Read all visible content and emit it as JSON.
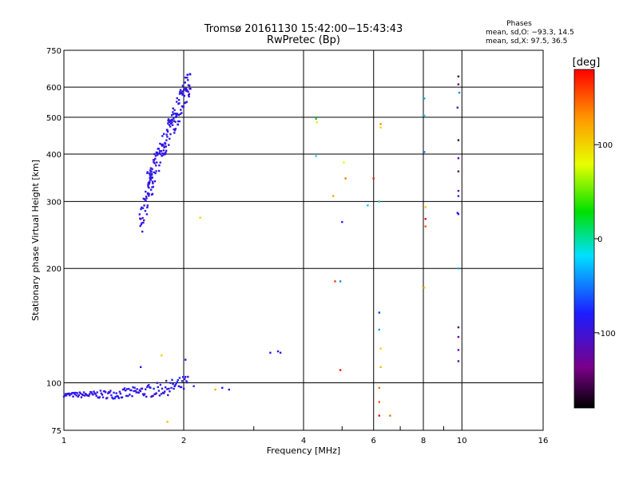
{
  "chart_data": {
    "type": "scatter",
    "title": "Tromsø 20161130 15:42:00−15:43:43",
    "subtitle": "RwPretec (Bp)",
    "xlabel": "Frequency [MHz]",
    "ylabel": "Stationary phase Virtual Height [km]",
    "x_scale": "log",
    "y_scale": "log",
    "xlim": [
      1,
      16
    ],
    "ylim": [
      75,
      750
    ],
    "x_ticks": [
      1,
      2,
      4,
      6,
      8,
      10,
      16
    ],
    "x_tick_labels": [
      "1",
      "2",
      "4",
      "6",
      "8",
      "10",
      "16"
    ],
    "y_ticks": [
      75,
      100,
      200,
      300,
      400,
      500,
      600,
      750
    ],
    "y_tick_labels": [
      "75",
      "100",
      "200",
      "300",
      "400",
      "500",
      "600",
      "750"
    ],
    "grid": true,
    "phases_box": {
      "heading": "Phases",
      "line_o": "mean, sd,O:  −93.3,  14.5",
      "line_x": "mean, sd,X:   97.5,  36.5"
    },
    "colorbar": {
      "label": "[deg]",
      "range": [
        -180,
        180
      ],
      "ticks": [
        100,
        0,
        -100
      ],
      "tick_labels": [
        "100",
        "0",
        "-100"
      ],
      "colormap": "rainbow (black→purple→blue→cyan→green→yellow→orange→red)"
    },
    "clusters": [
      {
        "name": "E-layer O trace",
        "x_start": 1.0,
        "x_end": 2.05,
        "h_base": 93,
        "h_end": 100,
        "phase": -100,
        "n": 150
      },
      {
        "name": "F-layer O trace lower",
        "x_start": 1.55,
        "x_end": 1.67,
        "h_start": 260,
        "h_end": 340,
        "phase": -100,
        "n": 40
      },
      {
        "name": "F-layer O trace upper",
        "x_start": 1.62,
        "x_end": 2.08,
        "h_start": 330,
        "h_end": 630,
        "phase": -100,
        "n": 170
      }
    ],
    "points": [
      {
        "x": 1.56,
        "y": 110,
        "phase": -90
      },
      {
        "x": 1.76,
        "y": 118,
        "phase": 100
      },
      {
        "x": 1.82,
        "y": 79,
        "phase": 110
      },
      {
        "x": 2.02,
        "y": 115,
        "phase": -110
      },
      {
        "x": 2.12,
        "y": 98,
        "phase": -100
      },
      {
        "x": 2.2,
        "y": 272,
        "phase": 100
      },
      {
        "x": 2.4,
        "y": 96,
        "phase": 120
      },
      {
        "x": 2.5,
        "y": 97,
        "phase": -100
      },
      {
        "x": 2.6,
        "y": 96,
        "phase": -100
      },
      {
        "x": 3.3,
        "y": 120,
        "phase": -90
      },
      {
        "x": 3.45,
        "y": 121,
        "phase": -90
      },
      {
        "x": 3.5,
        "y": 120,
        "phase": -90
      },
      {
        "x": 4.3,
        "y": 495,
        "phase": 20
      },
      {
        "x": 4.32,
        "y": 485,
        "phase": 90
      },
      {
        "x": 4.3,
        "y": 395,
        "phase": -20
      },
      {
        "x": 4.75,
        "y": 310,
        "phase": 120
      },
      {
        "x": 4.8,
        "y": 185,
        "phase": 160
      },
      {
        "x": 4.95,
        "y": 185,
        "phase": -50
      },
      {
        "x": 4.95,
        "y": 108,
        "phase": 175
      },
      {
        "x": 5.0,
        "y": 265,
        "phase": -90
      },
      {
        "x": 5.05,
        "y": 380,
        "phase": 80
      },
      {
        "x": 5.1,
        "y": 345,
        "phase": 140
      },
      {
        "x": 5.8,
        "y": 293,
        "phase": -30
      },
      {
        "x": 6.0,
        "y": 345,
        "phase": 170
      },
      {
        "x": 6.25,
        "y": 480,
        "phase": 130
      },
      {
        "x": 6.25,
        "y": 470,
        "phase": 100
      },
      {
        "x": 6.2,
        "y": 300,
        "phase": 0
      },
      {
        "x": 6.2,
        "y": 153,
        "phase": -80
      },
      {
        "x": 6.2,
        "y": 138,
        "phase": -40
      },
      {
        "x": 6.25,
        "y": 123,
        "phase": 100
      },
      {
        "x": 6.25,
        "y": 110,
        "phase": 110
      },
      {
        "x": 6.2,
        "y": 97,
        "phase": 140
      },
      {
        "x": 6.2,
        "y": 89,
        "phase": 150
      },
      {
        "x": 6.2,
        "y": 82,
        "phase": 175
      },
      {
        "x": 6.6,
        "y": 82,
        "phase": 140
      },
      {
        "x": 8.05,
        "y": 560,
        "phase": -40
      },
      {
        "x": 8.05,
        "y": 505,
        "phase": -30
      },
      {
        "x": 8.05,
        "y": 405,
        "phase": -60
      },
      {
        "x": 8.1,
        "y": 290,
        "phase": 100
      },
      {
        "x": 8.1,
        "y": 270,
        "phase": 175
      },
      {
        "x": 8.1,
        "y": 258,
        "phase": 150
      },
      {
        "x": 8.05,
        "y": 178,
        "phase": 100
      },
      {
        "x": 9.8,
        "y": 640,
        "phase": -160
      },
      {
        "x": 9.8,
        "y": 610,
        "phase": -150
      },
      {
        "x": 9.85,
        "y": 580,
        "phase": -50
      },
      {
        "x": 9.75,
        "y": 530,
        "phase": -120
      },
      {
        "x": 9.8,
        "y": 435,
        "phase": -160
      },
      {
        "x": 9.8,
        "y": 390,
        "phase": -130
      },
      {
        "x": 9.8,
        "y": 360,
        "phase": -150
      },
      {
        "x": 9.8,
        "y": 320,
        "phase": -130
      },
      {
        "x": 9.8,
        "y": 310,
        "phase": -90
      },
      {
        "x": 9.75,
        "y": 280,
        "phase": -90
      },
      {
        "x": 9.8,
        "y": 278,
        "phase": -100
      },
      {
        "x": 9.8,
        "y": 200,
        "phase": -40
      },
      {
        "x": 9.8,
        "y": 140,
        "phase": -150
      },
      {
        "x": 9.8,
        "y": 132,
        "phase": -140
      },
      {
        "x": 9.8,
        "y": 122,
        "phase": -120
      },
      {
        "x": 9.8,
        "y": 114,
        "phase": -130
      }
    ]
  }
}
